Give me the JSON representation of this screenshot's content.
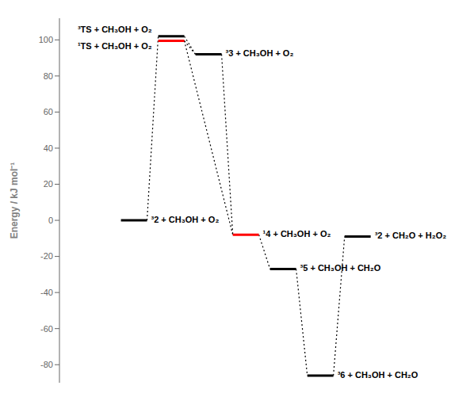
{
  "chart_data": {
    "type": "energy_levels",
    "ylabel": "Energy / kJ mol⁻¹",
    "ylim": [
      -90,
      112
    ],
    "yticks": [
      -80,
      -60,
      -40,
      -20,
      0,
      20,
      40,
      60,
      80,
      100
    ],
    "grid": false,
    "tick_labels": "y",
    "levels": [
      {
        "label": "³2 + CH₃OH + O₂",
        "value": 0.0,
        "color": "black"
      },
      {
        "label": "³TS + CH₃OH + O₂",
        "value": 102.0,
        "color": "black"
      },
      {
        "label": "¹TS + CH₃OH + O₂",
        "value": 99.5,
        "color": "red"
      },
      {
        "label": "³3 + CH₃OH + O₂",
        "value": 92.0,
        "color": "black"
      },
      {
        "label": "¹4 + CH₃OH + O₂",
        "value": -8.0,
        "color": "red"
      },
      {
        "label": "³5 + CH₃OH + CH₂O",
        "value": -27.0,
        "color": "black"
      },
      {
        "label": "³6 + CH₃OH + CH₂O",
        "value": -86.0,
        "color": "black"
      },
      {
        "label": "³2 + CH₂O + H₂O₂",
        "value": -9.0,
        "color": "black"
      }
    ],
    "connections": [
      {
        "from": "³2 + CH₃OH + O₂",
        "to": "³TS + CH₃OH + O₂"
      },
      {
        "from": "³TS + CH₃OH + O₂",
        "to": "³3 + CH₃OH + O₂"
      },
      {
        "from": "¹TS + CH₃OH + O₂",
        "to": "³3 + CH₃OH + O₂"
      },
      {
        "from": "¹TS + CH₃OH + O₂",
        "to": "¹4 + CH₃OH + O₂"
      },
      {
        "from": "³3 + CH₃OH + O₂",
        "to": "¹4 + CH₃OH + O₂"
      },
      {
        "from": "¹4 + CH₃OH + O₂",
        "to": "³5 + CH₃OH + CH₂O"
      },
      {
        "from": "³5 + CH₃OH + CH₂O",
        "to": "³6 + CH₃OH + CH₂O"
      },
      {
        "from": "³6 + CH₃OH + CH₂O",
        "to": "³2 + CH₂O + H₂O₂"
      }
    ]
  }
}
